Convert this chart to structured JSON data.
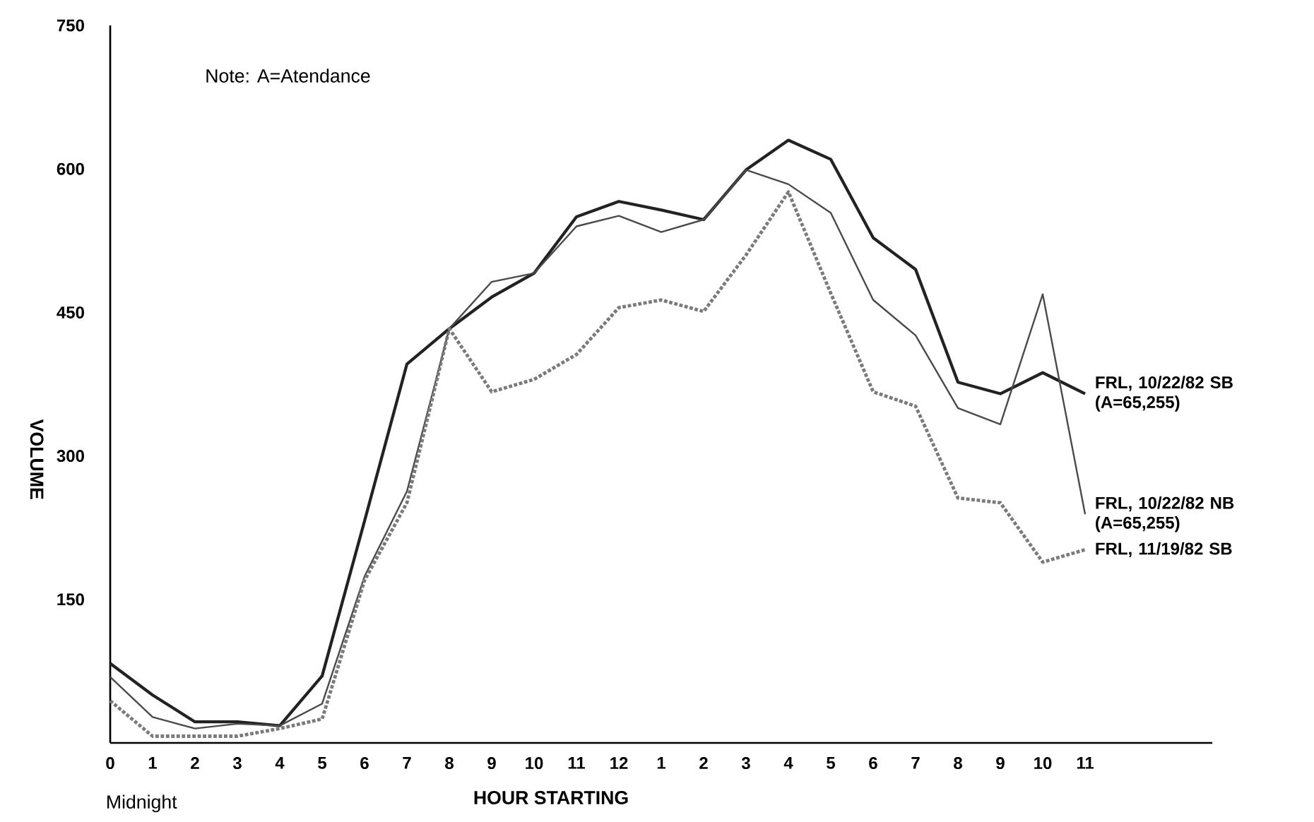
{
  "chart_data": {
    "type": "line",
    "xlabel": "HOUR STARTING",
    "ylabel": "VOLUME",
    "annotations": [
      "Note:  A=Atendance",
      "Midnight"
    ],
    "categories": [
      "0",
      "1",
      "2",
      "3",
      "4",
      "5",
      "6",
      "7",
      "8",
      "9",
      "10",
      "11",
      "12",
      "1",
      "2",
      "3",
      "4",
      "5",
      "6",
      "7",
      "8",
      "9",
      "10",
      "11"
    ],
    "ylim": [
      0,
      750
    ],
    "yticks": [
      150,
      300,
      450,
      600,
      750
    ],
    "series": [
      {
        "name": "FRL, 10/22/82 SB (A=65,255)",
        "color": "#222222",
        "line_style": "solid",
        "values": [
          83,
          50,
          22,
          22,
          18,
          70,
          232,
          396,
          433,
          466,
          491,
          550,
          566,
          557,
          547,
          599,
          630,
          610,
          528,
          495,
          377,
          365,
          387,
          365
        ]
      },
      {
        "name": "FRL, 10/22/82 NB (A=65,255)",
        "color": "#4a4a4a",
        "line_style": "solid",
        "values": [
          69,
          27,
          15,
          20,
          18,
          41,
          174,
          263,
          433,
          482,
          491,
          540,
          551,
          534,
          547,
          599,
          584,
          554,
          463,
          426,
          350,
          333,
          469,
          239
        ]
      },
      {
        "name": "FRL, 11/19/82 SB",
        "color": "#7a7a7a",
        "line_style": "dotted",
        "values": [
          44,
          7,
          7,
          7,
          15,
          25,
          170,
          251,
          433,
          367,
          380,
          406,
          455,
          463,
          451,
          510,
          576,
          470,
          367,
          352,
          256,
          251,
          189,
          202
        ]
      }
    ]
  }
}
